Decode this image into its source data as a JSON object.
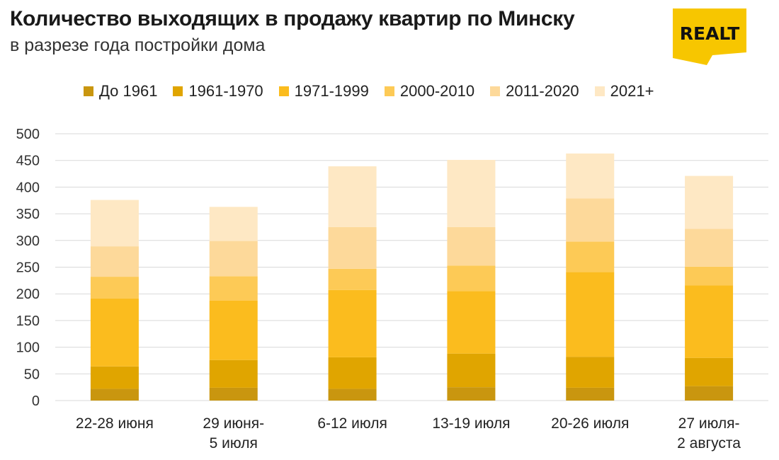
{
  "header": {
    "title": "Количество выходящих в продажу квартир по Минску",
    "subtitle": "в разрезе года постройки дома"
  },
  "logo": {
    "text": "REALT",
    "color": "#F7C600"
  },
  "chart_data": {
    "type": "bar",
    "stacked": true,
    "title": "Количество выходящих в продажу квартир по Минску",
    "subtitle": "в разрезе года постройки дома",
    "xlabel": "",
    "ylabel": "",
    "ylim": [
      0,
      500
    ],
    "yticks": [
      0,
      50,
      100,
      150,
      200,
      250,
      300,
      350,
      400,
      450,
      500
    ],
    "grid": true,
    "legend_position": "top",
    "categories": [
      [
        "22-28 июня"
      ],
      [
        "29 июня-",
        "5 июля"
      ],
      [
        "6-12 июля"
      ],
      [
        "13-19 июля"
      ],
      [
        "20-26 июля"
      ],
      [
        "27 июля-",
        "2 августа"
      ]
    ],
    "series": [
      {
        "name": "До 1961",
        "color": "#C9960F",
        "values": [
          22,
          24,
          22,
          25,
          24,
          27
        ]
      },
      {
        "name": "1961-1970",
        "color": "#E0A500",
        "values": [
          42,
          52,
          59,
          63,
          58,
          53
        ]
      },
      {
        "name": "1971-1999",
        "color": "#FBBC1E",
        "values": [
          127,
          111,
          126,
          117,
          159,
          136
        ]
      },
      {
        "name": "2000-2010",
        "color": "#FDCA56",
        "values": [
          41,
          46,
          40,
          48,
          57,
          35
        ]
      },
      {
        "name": "2011-2020",
        "color": "#FDD99A",
        "values": [
          57,
          66,
          78,
          72,
          81,
          71
        ]
      },
      {
        "name": "2021+",
        "color": "#FEE8C4",
        "values": [
          87,
          64,
          114,
          126,
          84,
          99
        ]
      }
    ]
  }
}
